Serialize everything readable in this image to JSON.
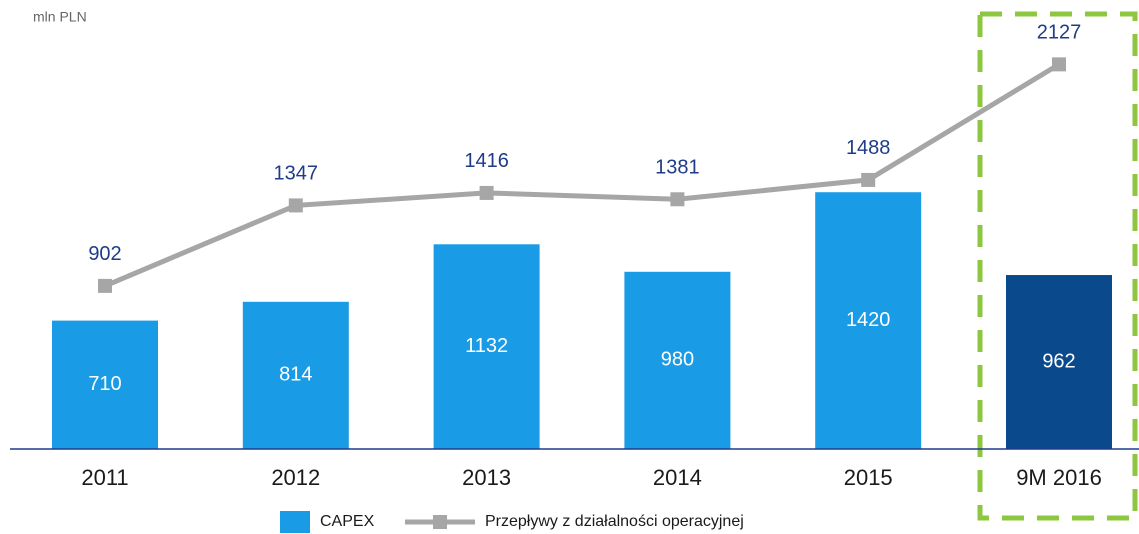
{
  "chart_data": {
    "type": "bar",
    "unit_label": "mln PLN",
    "categories": [
      "2011",
      "2012",
      "2013",
      "2014",
      "2015",
      "9M 2016"
    ],
    "series": [
      {
        "name": "CAPEX",
        "type": "bar",
        "colors": [
          "#1a9be6",
          "#1a9be6",
          "#1a9be6",
          "#1a9be6",
          "#1a9be6",
          "#0a4a8c"
        ],
        "values": [
          710,
          814,
          1132,
          980,
          1420,
          962
        ]
      },
      {
        "name": "Przepływy z działalności operacyjnej",
        "type": "line",
        "color": "#a6a6a6",
        "values": [
          902,
          1347,
          1416,
          1381,
          1488,
          2127
        ]
      }
    ],
    "ylim": [
      0,
      2400
    ]
  }
}
